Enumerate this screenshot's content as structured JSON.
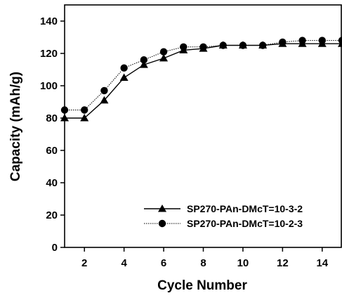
{
  "chart_data": {
    "type": "line",
    "title": "",
    "xlabel": "Cycle Number",
    "ylabel": "Capacity (mAh/g)",
    "xlim": [
      1,
      15
    ],
    "ylim": [
      0,
      150
    ],
    "x_ticks": [
      2,
      4,
      6,
      8,
      10,
      12,
      14
    ],
    "y_ticks": [
      0,
      20,
      40,
      60,
      80,
      100,
      120,
      140
    ],
    "x_tick_labels": [
      "2",
      "4",
      "6",
      "8",
      "10",
      "12",
      "14"
    ],
    "y_tick_labels": [
      "0",
      "20",
      "40",
      "60",
      "80",
      "100",
      "120",
      "140"
    ],
    "grid": false,
    "legend_position": "bottom-right",
    "x": [
      1,
      2,
      3,
      4,
      5,
      6,
      7,
      8,
      9,
      10,
      11,
      12,
      13,
      14,
      15
    ],
    "series": [
      {
        "name": "SP270-PAn-DMcT=10-3-2",
        "marker": "triangle",
        "line_style": "solid",
        "color": "#000000",
        "values": [
          80,
          80,
          91,
          105,
          113,
          117,
          122,
          123,
          125,
          125,
          125,
          126,
          126,
          126,
          126
        ]
      },
      {
        "name": "SP270-PAn-DMcT=10-2-3",
        "marker": "circle",
        "line_style": "dotted",
        "color": "#000000",
        "values": [
          85,
          85,
          97,
          111,
          116,
          121,
          124,
          124,
          125,
          125,
          125,
          127,
          128,
          128,
          128
        ]
      }
    ]
  }
}
